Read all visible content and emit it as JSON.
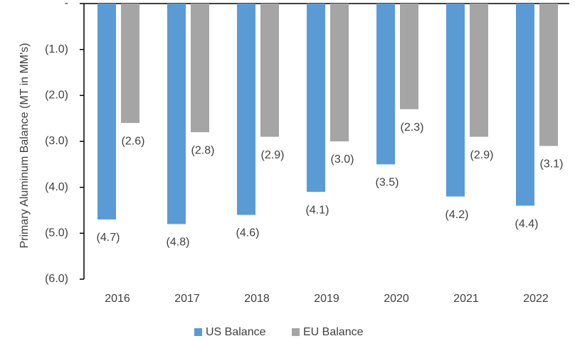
{
  "chart_data": {
    "type": "bar",
    "y_label": "Primary Aluminum Balance (MT in MM's)",
    "categories": [
      "2016",
      "2017",
      "2018",
      "2019",
      "2020",
      "2021",
      "2022"
    ],
    "series": [
      {
        "name": "US Balance",
        "color": "#5b9bd5",
        "values": [
          -4.7,
          -4.8,
          -4.6,
          -4.1,
          -3.5,
          -4.2,
          -4.4
        ],
        "value_labels": [
          "(4.7)",
          "(4.8)",
          "(4.6)",
          "(4.1)",
          "(3.5)",
          "(4.2)",
          "(4.4)"
        ]
      },
      {
        "name": "EU Balance",
        "color": "#a5a5a5",
        "values": [
          -2.6,
          -2.8,
          -2.9,
          -3.0,
          -2.3,
          -2.9,
          -3.1
        ],
        "value_labels": [
          "(2.6)",
          "(2.8)",
          "(2.9)",
          "(3.0)",
          "(2.3)",
          "(2.9)",
          "(3.1)"
        ]
      }
    ],
    "ylim": [
      -6,
      0
    ],
    "yticks": [
      {
        "value": 0,
        "label": "-"
      },
      {
        "value": -1,
        "label": "(1.0)"
      },
      {
        "value": -2,
        "label": "(2.0)"
      },
      {
        "value": -3,
        "label": "(3.0)"
      },
      {
        "value": -4,
        "label": "(4.0)"
      },
      {
        "value": -5,
        "label": "(5.0)"
      },
      {
        "value": -6,
        "label": "(6.0)"
      }
    ],
    "legend": "bottom"
  }
}
